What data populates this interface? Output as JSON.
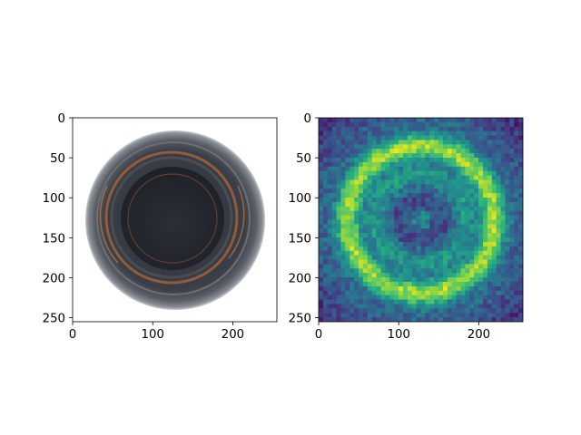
{
  "chart_data": [
    {
      "type": "image",
      "content": "photo-bottle-top-view",
      "xlim": [
        0,
        255
      ],
      "ylim": [
        255,
        0
      ],
      "y_axis_inverted": true,
      "xticks": [
        "0",
        "100",
        "200"
      ],
      "yticks": [
        "0",
        "50",
        "100",
        "150",
        "200",
        "250"
      ],
      "colors": {
        "background": "#ffffff",
        "outer_ring": "#2f333a",
        "inner_well": "#22262c",
        "copper_rim": "#a0623a"
      }
    },
    {
      "type": "heatmap",
      "colormap": "viridis",
      "xlim": [
        0,
        255
      ],
      "ylim": [
        255,
        0
      ],
      "y_axis_inverted": true,
      "xticks": [
        "0",
        "100",
        "200"
      ],
      "yticks": [
        "0",
        "50",
        "100",
        "150",
        "200",
        "250"
      ],
      "colors": {
        "low": "#440154",
        "mid": "#31688e",
        "high": "#fde725"
      }
    }
  ]
}
